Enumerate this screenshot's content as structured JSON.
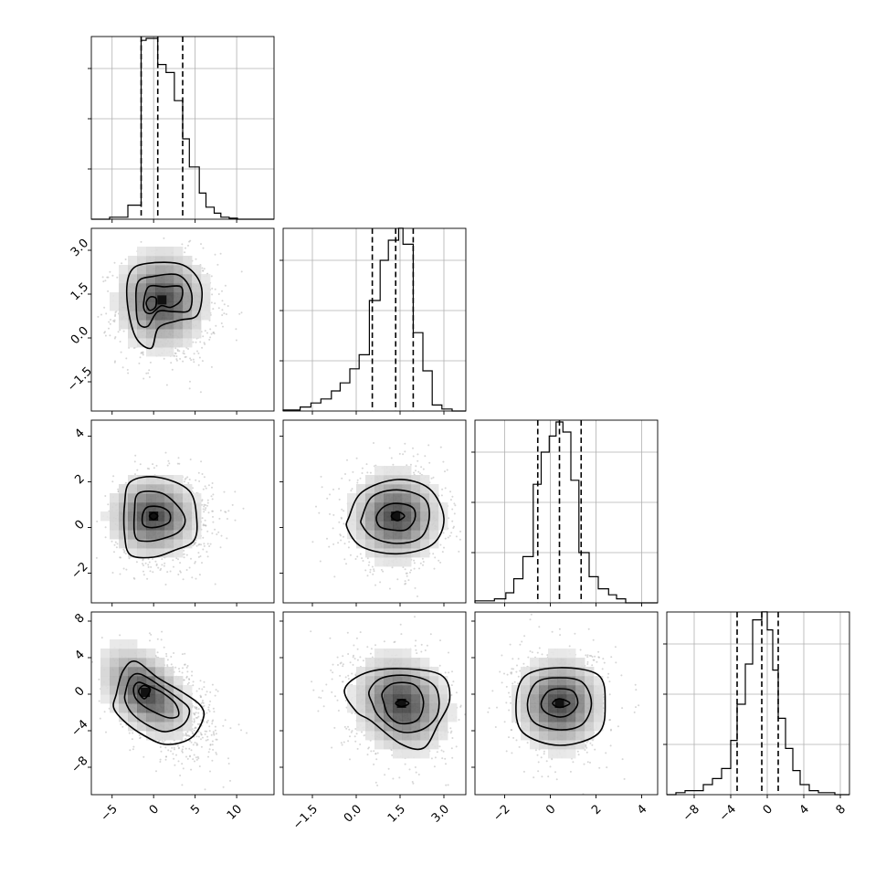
{
  "chart_data": {
    "type": "corner",
    "parameters": 4,
    "axes": [
      {
        "range": [
          -7.5,
          14.5
        ],
        "ticks": [
          -5,
          0,
          5,
          10
        ],
        "tick_labels": [
          "−5",
          "0",
          "5",
          "10"
        ]
      },
      {
        "range": [
          -2.5,
          3.75
        ],
        "ticks": [
          -1.5,
          0.0,
          1.5,
          3.0
        ],
        "tick_labels": [
          "−1.5",
          "0.0",
          "1.5",
          "3.0"
        ]
      },
      {
        "range": [
          -3.3,
          4.7
        ],
        "ticks": [
          -2,
          0,
          2,
          4
        ],
        "tick_labels": [
          "−2",
          "0",
          "2",
          "4"
        ]
      },
      {
        "range": [
          -11.0,
          9.0
        ],
        "ticks": [
          -8,
          -4,
          0,
          4,
          8
        ],
        "tick_labels": [
          "−8",
          "−4",
          "0",
          "4",
          "8"
        ]
      }
    ],
    "histograms": [
      {
        "param": 0,
        "bin_edges": [
          -7.5,
          -5.3,
          -3.1,
          -1.5,
          -0.9,
          0.5,
          1.5,
          2.5,
          3.5,
          4.3,
          5.5,
          6.3,
          7.3,
          8.1,
          9.1,
          10.1,
          11.5
        ],
        "counts": [
          0,
          0.01,
          0.07,
          0.89,
          0.9,
          0.77,
          0.73,
          0.59,
          0.4,
          0.26,
          0.13,
          0.06,
          0.03,
          0.01,
          0.005,
          0
        ],
        "quantiles": [
          -1.5,
          0.5,
          3.5
        ]
      },
      {
        "param": 1,
        "bin_edges": [
          -2.5,
          -1.92,
          -1.55,
          -1.21,
          -0.85,
          -0.55,
          -0.22,
          0.1,
          0.45,
          0.82,
          1.1,
          1.45,
          1.6,
          1.95,
          2.28,
          2.6,
          2.93,
          3.28,
          3.75
        ],
        "counts": [
          0.005,
          0.02,
          0.04,
          0.06,
          0.1,
          0.14,
          0.21,
          0.28,
          0.55,
          0.75,
          0.85,
          0.91,
          0.83,
          0.39,
          0.2,
          0.03,
          0.01,
          0
        ],
        "quantiles": [
          0.55,
          1.35,
          1.95
        ]
      },
      {
        "param": 2,
        "bin_edges": [
          -3.3,
          -2.45,
          -1.95,
          -1.6,
          -1.2,
          -0.75,
          -0.4,
          -0.05,
          0.25,
          0.55,
          0.9,
          1.25,
          1.7,
          2.1,
          2.55,
          2.9,
          3.3,
          4.7
        ],
        "counts": [
          0.01,
          0.02,
          0.05,
          0.12,
          0.23,
          0.59,
          0.75,
          0.83,
          0.9,
          0.85,
          0.61,
          0.25,
          0.13,
          0.07,
          0.04,
          0.02,
          0
        ],
        "quantiles": [
          -0.55,
          0.4,
          1.35
        ]
      },
      {
        "param": 3,
        "bin_edges": [
          -11.0,
          -10.0,
          -9.0,
          -7.0,
          -6.0,
          -5.0,
          -4.0,
          -3.3,
          -2.4,
          -1.6,
          -0.6,
          0.0,
          0.6,
          1.2,
          2.0,
          2.8,
          3.6,
          4.6,
          5.6,
          7.4,
          9.0
        ],
        "counts": [
          0,
          0.01,
          0.02,
          0.05,
          0.08,
          0.13,
          0.27,
          0.45,
          0.65,
          0.87,
          0.91,
          0.82,
          0.62,
          0.38,
          0.23,
          0.12,
          0.05,
          0.02,
          0.01,
          0
        ],
        "quantiles": [
          -3.3,
          -0.6,
          1.2
        ]
      }
    ],
    "pairs": [
      {
        "x_param": 0,
        "y_param": 1,
        "center": [
          1.0,
          1.3
        ],
        "cloud_sigma": [
          3.0,
          0.95
        ],
        "cloud_center": [
          1.6,
          1.0
        ],
        "rho": 0,
        "contours": [
          [
            [
              -3.2,
              1.3
            ],
            [
              -2.8,
              2.25
            ],
            [
              -0.8,
              2.55
            ],
            [
              3.5,
              2.5
            ],
            [
              5.7,
              1.8
            ],
            [
              5.3,
              0.8
            ],
            [
              3.0,
              0.6
            ],
            [
              0.6,
              0.35
            ],
            [
              -0.3,
              -0.35
            ],
            [
              -2.2,
              0.05
            ]
          ],
          [
            [
              -2.1,
              1.1
            ],
            [
              -1.9,
              1.9
            ],
            [
              -0.2,
              2.1
            ],
            [
              3.0,
              2.15
            ],
            [
              4.5,
              1.6
            ],
            [
              4.3,
              0.95
            ],
            [
              2.4,
              0.9
            ],
            [
              0.5,
              0.9
            ],
            [
              -0.7,
              0.4
            ],
            [
              -1.8,
              0.5
            ]
          ],
          [
            [
              -1.2,
              1.2
            ],
            [
              -0.6,
              1.75
            ],
            [
              1.3,
              1.75
            ],
            [
              3.3,
              1.75
            ],
            [
              3.3,
              1.3
            ],
            [
              2.1,
              1.05
            ],
            [
              0.9,
              1.1
            ],
            [
              -0.2,
              0.85
            ],
            [
              -1.0,
              0.9
            ]
          ],
          [
            [
              -0.9,
              1.2
            ],
            [
              -0.4,
              1.4
            ],
            [
              0.3,
              1.35
            ],
            [
              0.2,
              1.05
            ],
            [
              -0.5,
              0.95
            ]
          ]
        ]
      },
      {
        "x_param": 0,
        "y_param": 2,
        "center": [
          0.0,
          0.5
        ],
        "cloud_sigma": [
          3.0,
          1.0
        ],
        "cloud_center": [
          1.2,
          0.4
        ],
        "rho": 0,
        "contours": [
          [
            [
              -3.5,
              1.0
            ],
            [
              -2.8,
              2.0
            ],
            [
              0.5,
              2.2
            ],
            [
              4.3,
              1.6
            ],
            [
              5.2,
              0.3
            ],
            [
              4.8,
              -0.6
            ],
            [
              2.5,
              -1.0
            ],
            [
              0.0,
              -1.3
            ],
            [
              -2.8,
              -1.2
            ],
            [
              -3.5,
              -0.3
            ]
          ],
          [
            [
              -2.3,
              0.7
            ],
            [
              -1.8,
              1.5
            ],
            [
              1.0,
              1.5
            ],
            [
              3.0,
              0.9
            ],
            [
              3.8,
              0.3
            ],
            [
              3.0,
              -0.2
            ],
            [
              1.0,
              -0.5
            ],
            [
              -1.0,
              -0.6
            ],
            [
              -2.2,
              -0.4
            ]
          ],
          [
            [
              -1.3,
              0.6
            ],
            [
              -0.7,
              0.9
            ],
            [
              0.8,
              0.9
            ],
            [
              1.9,
              0.65
            ],
            [
              1.9,
              0.25
            ],
            [
              0.8,
              0.05
            ],
            [
              -0.5,
              0.0
            ],
            [
              -1.3,
              0.15
            ]
          ],
          [
            [
              -0.5,
              0.5
            ],
            [
              0.0,
              0.65
            ],
            [
              0.5,
              0.5
            ],
            [
              0.0,
              0.35
            ]
          ]
        ]
      },
      {
        "x_param": 1,
        "y_param": 2,
        "center": [
          1.35,
          0.5
        ],
        "cloud_sigma": [
          0.85,
          1.1
        ],
        "cloud_center": [
          1.35,
          0.4
        ],
        "rho": 0,
        "contours": [
          [
            [
              -0.25,
              0.45
            ],
            [
              0.2,
              1.55
            ],
            [
              1.4,
              2.1
            ],
            [
              2.5,
              1.7
            ],
            [
              3.0,
              0.4
            ],
            [
              2.6,
              -0.75
            ],
            [
              1.4,
              -1.15
            ],
            [
              0.2,
              -0.85
            ],
            [
              -0.3,
              -0.05
            ]
          ],
          [
            [
              0.2,
              0.45
            ],
            [
              0.55,
              1.35
            ],
            [
              1.4,
              1.65
            ],
            [
              2.3,
              1.3
            ],
            [
              2.5,
              0.45
            ],
            [
              2.2,
              -0.45
            ],
            [
              1.4,
              -0.7
            ],
            [
              0.6,
              -0.45
            ],
            [
              0.2,
              0.1
            ]
          ],
          [
            [
              0.7,
              0.5
            ],
            [
              1.0,
              0.95
            ],
            [
              1.5,
              1.05
            ],
            [
              1.95,
              0.85
            ],
            [
              2.0,
              0.35
            ],
            [
              1.7,
              -0.1
            ],
            [
              1.2,
              -0.1
            ],
            [
              0.8,
              0.05
            ]
          ],
          [
            [
              1.2,
              0.5
            ],
            [
              1.4,
              0.7
            ],
            [
              1.65,
              0.5
            ],
            [
              1.4,
              0.3
            ]
          ]
        ]
      },
      {
        "x_param": 0,
        "y_param": 3,
        "center": [
          -1.0,
          0.2
        ],
        "cloud_sigma": [
          3.0,
          2.8
        ],
        "cloud_center": [
          1.4,
          -1.0
        ],
        "rho": -0.45,
        "contours": [
          [
            [
              -4.5,
              0.0
            ],
            [
              -3.7,
              2.5
            ],
            [
              -2.2,
              3.6
            ],
            [
              0.5,
              1.8
            ],
            [
              3.5,
              0.2
            ],
            [
              5.6,
              -1.2
            ],
            [
              6.0,
              -2.6
            ],
            [
              4.5,
              -4.8
            ],
            [
              1.5,
              -5.5
            ],
            [
              -1.2,
              -4.5
            ],
            [
              -3.5,
              -3.0
            ],
            [
              -4.8,
              -1.5
            ]
          ],
          [
            [
              -3.4,
              0.2
            ],
            [
              -2.8,
              1.8
            ],
            [
              -1.6,
              2.2
            ],
            [
              0.8,
              0.9
            ],
            [
              3.0,
              -0.5
            ],
            [
              4.3,
              -1.7
            ],
            [
              3.6,
              -3.3
            ],
            [
              1.5,
              -4.1
            ],
            [
              -0.5,
              -3.5
            ],
            [
              -2.5,
              -2.2
            ],
            [
              -3.4,
              -0.8
            ]
          ],
          [
            [
              -2.4,
              0.7
            ],
            [
              -1.8,
              1.3
            ],
            [
              -0.6,
              0.9
            ],
            [
              1.0,
              0.2
            ],
            [
              2.6,
              -1.0
            ],
            [
              3.0,
              -2.3
            ],
            [
              1.9,
              -2.6
            ],
            [
              0.4,
              -2.1
            ],
            [
              -1.2,
              -1.3
            ],
            [
              -2.2,
              -0.4
            ]
          ],
          [
            [
              -1.8,
              0.3
            ],
            [
              -1.2,
              0.95
            ],
            [
              -0.4,
              0.5
            ],
            [
              -1.1,
              -0.5
            ]
          ]
        ]
      },
      {
        "x_param": 1,
        "y_param": 3,
        "center": [
          1.55,
          -1.0
        ],
        "cloud_sigma": [
          0.9,
          3.0
        ],
        "cloud_center": [
          1.35,
          -1.0
        ],
        "rho": -0.15,
        "contours": [
          [
            [
              -0.4,
              0.5
            ],
            [
              0.3,
              2.3
            ],
            [
              1.5,
              2.8
            ],
            [
              2.9,
              2.1
            ],
            [
              3.2,
              -0.5
            ],
            [
              2.8,
              -3.3
            ],
            [
              2.3,
              -5.9
            ],
            [
              1.5,
              -5.4
            ],
            [
              0.5,
              -2.9
            ],
            [
              0.0,
              -1.9
            ]
          ],
          [
            [
              0.45,
              0.4
            ],
            [
              0.9,
              1.8
            ],
            [
              1.9,
              2.0
            ],
            [
              2.7,
              0.8
            ],
            [
              2.8,
              -2.0
            ],
            [
              2.3,
              -3.8
            ],
            [
              1.5,
              -4.1
            ],
            [
              0.8,
              -2.5
            ],
            [
              0.55,
              -1.0
            ]
          ],
          [
            [
              0.9,
              0.2
            ],
            [
              1.3,
              1.2
            ],
            [
              2.0,
              1.0
            ],
            [
              2.3,
              -0.8
            ],
            [
              2.1,
              -2.8
            ],
            [
              1.5,
              -3.2
            ],
            [
              1.1,
              -2.3
            ],
            [
              0.95,
              -1.0
            ]
          ],
          [
            [
              1.35,
              -1.0
            ],
            [
              1.55,
              -0.6
            ],
            [
              1.8,
              -1.0
            ],
            [
              1.55,
              -1.35
            ]
          ]
        ]
      },
      {
        "x_param": 2,
        "y_param": 3,
        "center": [
          0.4,
          -1.0
        ],
        "cloud_sigma": [
          1.05,
          2.9
        ],
        "cloud_center": [
          0.4,
          -1.0
        ],
        "rho": 0,
        "contours": [
          [
            [
              -1.5,
              -1.0
            ],
            [
              -1.1,
              2.0
            ],
            [
              0.4,
              2.9
            ],
            [
              2.1,
              2.1
            ],
            [
              2.4,
              -1.0
            ],
            [
              2.1,
              -4.3
            ],
            [
              0.4,
              -5.6
            ],
            [
              -1.2,
              -4.2
            ]
          ],
          [
            [
              -1.0,
              -1.0
            ],
            [
              -0.6,
              1.3
            ],
            [
              0.4,
              1.8
            ],
            [
              1.4,
              1.3
            ],
            [
              1.8,
              -1.0
            ],
            [
              1.4,
              -3.3
            ],
            [
              0.4,
              -3.9
            ],
            [
              -0.7,
              -3.1
            ]
          ],
          [
            [
              -0.4,
              -1.0
            ],
            [
              -0.1,
              0.3
            ],
            [
              0.4,
              0.6
            ],
            [
              1.0,
              0.3
            ],
            [
              1.2,
              -1.0
            ],
            [
              0.9,
              -2.1
            ],
            [
              0.4,
              -2.5
            ],
            [
              -0.2,
              -2.0
            ]
          ],
          [
            [
              0.1,
              -1.0
            ],
            [
              0.4,
              -0.5
            ],
            [
              0.85,
              -1.0
            ],
            [
              0.4,
              -1.45
            ]
          ]
        ]
      }
    ],
    "grid": true,
    "point_color": "#b4b4b4",
    "line_color": "#000000",
    "frame_color": "#000000",
    "grid_color": "#b0b0b0"
  }
}
